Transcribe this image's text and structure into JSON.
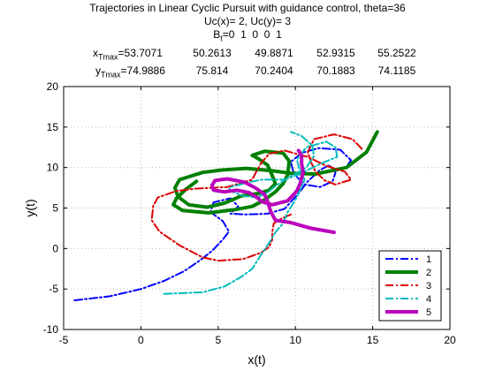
{
  "header": {
    "title": "Trajectories in Linear Cyclic Pursuit with guidance control, theta=36",
    "uc_line": "Uc(x)= 2, Uc(y)= 3",
    "bt_prefix": "B",
    "bt_sub": "t",
    "bt_values": "=0  1  0  0  1",
    "xt_prefix": "x",
    "xt_sub": "Tmax",
    "yt_prefix": "y",
    "yt_sub": "Tmax",
    "xt_values": [
      "53.7071",
      "50.2613",
      "49.8871",
      "52.9315",
      "55.2522"
    ],
    "yt_values": [
      "74.9886",
      "75.814",
      "70.2404",
      "70.1883",
      "74.1185"
    ]
  },
  "chart_data": {
    "type": "line",
    "xlabel": "x(t)",
    "ylabel": "y(t)",
    "xlim": [
      -5,
      20
    ],
    "ylim": [
      -10,
      20
    ],
    "xticks": [
      -5,
      0,
      5,
      10,
      15,
      20
    ],
    "yticks": [
      -10,
      -5,
      0,
      5,
      10,
      15,
      20
    ],
    "grid": true,
    "legend_position": "bottom-right",
    "series": [
      {
        "name": "1",
        "color": "#0000ff",
        "style": "dash-dot",
        "width": 2,
        "points": [
          [
            -4.3,
            -6.4
          ],
          [
            -2,
            -5.9
          ],
          [
            0,
            -5
          ],
          [
            1.5,
            -4
          ],
          [
            2.8,
            -2.8
          ],
          [
            3.8,
            -1.5
          ],
          [
            4.6,
            -0.3
          ],
          [
            5.3,
            1.1
          ],
          [
            5.7,
            2.1
          ],
          [
            5.3,
            3.4
          ],
          [
            4.5,
            4.5
          ],
          [
            4.7,
            5.7
          ],
          [
            5.8,
            6.2
          ],
          [
            6.3,
            5.2
          ],
          [
            5.8,
            4.3
          ],
          [
            6.8,
            4.2
          ],
          [
            8.2,
            4.3
          ],
          [
            9.3,
            4.9
          ],
          [
            10.2,
            6.8
          ],
          [
            10.8,
            8.3
          ],
          [
            11.6,
            9.7
          ],
          [
            12.2,
            10.3
          ],
          [
            12.6,
            9.4
          ],
          [
            12.4,
            8.3
          ],
          [
            11.6,
            7.6
          ],
          [
            10.6,
            7.9
          ],
          [
            9.9,
            9.2
          ],
          [
            9.7,
            10.7
          ],
          [
            10.4,
            11.8
          ],
          [
            11.5,
            12.4
          ],
          [
            12.9,
            12.2
          ],
          [
            13.6,
            10.9
          ],
          [
            13.3,
            10.1
          ]
        ]
      },
      {
        "name": "2",
        "color": "#008000",
        "style": "solid",
        "width": 4,
        "points": [
          [
            15.3,
            14.4
          ],
          [
            14.6,
            11.9
          ],
          [
            13.3,
            10
          ],
          [
            11.3,
            9.2
          ],
          [
            9.7,
            9.3
          ],
          [
            8.5,
            9.6
          ],
          [
            6.8,
            9.9
          ],
          [
            5.3,
            9.7
          ],
          [
            4,
            9.4
          ],
          [
            2.5,
            8.5
          ],
          [
            2.2,
            7.5
          ],
          [
            2.4,
            6.4
          ],
          [
            3.1,
            5.4
          ],
          [
            4.3,
            5.1
          ],
          [
            5.4,
            5.6
          ],
          [
            6.5,
            6.5
          ],
          [
            7.6,
            6.8
          ],
          [
            8.3,
            7.2
          ],
          [
            8.7,
            8
          ],
          [
            8.5,
            9
          ],
          [
            8.2,
            10.3
          ],
          [
            7.6,
            11.1
          ],
          [
            7.2,
            11.5
          ],
          [
            8,
            12
          ],
          [
            9.2,
            11.8
          ],
          [
            9.6,
            10.8
          ],
          [
            9.5,
            9.1
          ],
          [
            9.2,
            8
          ],
          [
            8.7,
            7
          ],
          [
            8,
            6
          ],
          [
            7.2,
            5.2
          ],
          [
            6.1,
            4.8
          ],
          [
            4.4,
            4.4
          ],
          [
            2.7,
            4.7
          ],
          [
            2.1,
            5.4
          ],
          [
            2.3,
            6.2
          ],
          [
            2.9,
            7.3
          ],
          [
            3.6,
            8.3
          ]
        ]
      },
      {
        "name": "3",
        "color": "#dd0000",
        "style": "dash-dot",
        "width": 2,
        "points": [
          [
            14.3,
            12.3
          ],
          [
            13.7,
            13.5
          ],
          [
            12.5,
            14.1
          ],
          [
            11.2,
            13.5
          ],
          [
            10.8,
            11.9
          ],
          [
            11,
            10.7
          ],
          [
            11.3,
            9.5
          ],
          [
            11.9,
            8.4
          ],
          [
            12.6,
            7.9
          ],
          [
            13.6,
            8.5
          ],
          [
            13.2,
            9.5
          ],
          [
            12,
            10.2
          ],
          [
            10.8,
            11.3
          ],
          [
            9.3,
            12.1
          ],
          [
            8.3,
            11.7
          ],
          [
            7.8,
            10.6
          ],
          [
            7.5,
            9.6
          ],
          [
            7.2,
            8.5
          ],
          [
            5.6,
            7.6
          ],
          [
            3.6,
            7.4
          ],
          [
            2.3,
            7.1
          ],
          [
            1.1,
            6.3
          ],
          [
            0.8,
            5.3
          ],
          [
            0.7,
            3.5
          ],
          [
            1.2,
            2.1
          ],
          [
            2.5,
            0.4
          ],
          [
            4,
            -1.1
          ],
          [
            5,
            -1.5
          ],
          [
            6.6,
            -1.3
          ],
          [
            7.8,
            -0.5
          ],
          [
            8.3,
            0.2
          ],
          [
            8.5,
            1.1
          ],
          [
            8.5,
            2
          ],
          [
            8.6,
            3.1
          ],
          [
            9.1,
            3.7
          ],
          [
            9.7,
            4.2
          ]
        ]
      },
      {
        "name": "4",
        "color": "#00bbbb",
        "style": "dash-dot",
        "width": 2,
        "points": [
          [
            1.5,
            -5.6
          ],
          [
            4,
            -5.4
          ],
          [
            5.4,
            -4.7
          ],
          [
            6.5,
            -3.5
          ],
          [
            7.2,
            -2.5
          ],
          [
            7.8,
            -0.7
          ],
          [
            8.3,
            0.7
          ],
          [
            8.7,
            2
          ],
          [
            9.2,
            3.1
          ],
          [
            9.5,
            4.5
          ],
          [
            10,
            6
          ],
          [
            10.3,
            7.2
          ],
          [
            10.6,
            8.5
          ],
          [
            10.3,
            9.5
          ],
          [
            10.1,
            11
          ],
          [
            10.7,
            12.5
          ],
          [
            12,
            13.2
          ],
          [
            12.6,
            12.5
          ],
          [
            12.7,
            11.3
          ],
          [
            11.9,
            10.7
          ],
          [
            11,
            9.9
          ],
          [
            10.3,
            9.2
          ],
          [
            9.3,
            8.5
          ],
          [
            7.8,
            8.5
          ],
          [
            6.8,
            8.1
          ],
          [
            5.8,
            7.6
          ],
          [
            5.7,
            7.2
          ],
          [
            6.6,
            6.5
          ],
          [
            7.5,
            6.3
          ],
          [
            8.1,
            6.8
          ],
          [
            8.7,
            7.7
          ],
          [
            9.5,
            8.7
          ],
          [
            10.7,
            10
          ],
          [
            11.2,
            11.4
          ],
          [
            11.1,
            12.7
          ],
          [
            10.4,
            13.9
          ],
          [
            9.7,
            14.4
          ]
        ]
      },
      {
        "name": "5",
        "color": "#bb00bb",
        "style": "solid",
        "width": 4,
        "points": [
          [
            12.5,
            2
          ],
          [
            11,
            2.5
          ],
          [
            9.7,
            3.2
          ],
          [
            8.7,
            3.5
          ],
          [
            8.4,
            4.6
          ],
          [
            8.2,
            5.8
          ],
          [
            8,
            6.7
          ],
          [
            7.4,
            7.5
          ],
          [
            6.7,
            8.2
          ],
          [
            5.6,
            8.6
          ],
          [
            4.8,
            8.4
          ],
          [
            4.6,
            7.8
          ],
          [
            4.7,
            7.2
          ],
          [
            5.4,
            7
          ],
          [
            6.2,
            7.2
          ],
          [
            7,
            6.9
          ],
          [
            7.6,
            6.2
          ],
          [
            7.8,
            5.8
          ],
          [
            8.5,
            5.4
          ],
          [
            9.5,
            5.9
          ],
          [
            10.1,
            7.1
          ],
          [
            10.3,
            8
          ],
          [
            10.5,
            9.4
          ],
          [
            10.4,
            10.5
          ],
          [
            10.4,
            11.5
          ],
          [
            10.2,
            12.1
          ]
        ]
      }
    ]
  }
}
